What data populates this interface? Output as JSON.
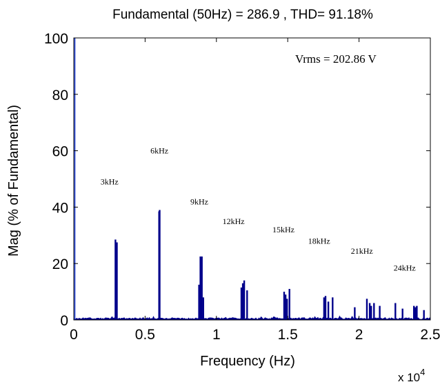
{
  "chart_data": {
    "type": "bar",
    "title": "Fundamental (50Hz) = 286.9 , THD= 91.18%",
    "xlabel": "Frequency (Hz)",
    "ylabel": "Mag (% of Fundamental)",
    "x_multiplier_label": "x 10",
    "x_multiplier_exponent": "4",
    "xlim": [
      0,
      2.5
    ],
    "ylim": [
      0,
      100
    ],
    "x_ticks": [
      0,
      0.5,
      1,
      1.5,
      2,
      2.5
    ],
    "x_tick_labels": [
      "0",
      "0.5",
      "1",
      "1.5",
      "2",
      "2.5"
    ],
    "y_ticks": [
      0,
      20,
      40,
      60,
      80,
      100
    ],
    "y_tick_labels": [
      "0",
      "20",
      "40",
      "60",
      "80",
      "100"
    ],
    "grid": false,
    "bar_color": "#00008B",
    "fundamental_color": "#1F3FD6",
    "inset_text": "Vrms = 202.86 V",
    "annotations": [
      {
        "text": "3kHz",
        "x": 0.25,
        "y": 48
      },
      {
        "text": "6kHz",
        "x": 0.6,
        "y": 59
      },
      {
        "text": "9kHz",
        "x": 0.88,
        "y": 41
      },
      {
        "text": "12kHz",
        "x": 1.12,
        "y": 34
      },
      {
        "text": "15kHz",
        "x": 1.47,
        "y": 31
      },
      {
        "text": "18kHz",
        "x": 1.72,
        "y": 27
      },
      {
        "text": "21kHz",
        "x": 2.02,
        "y": 23.5
      },
      {
        "text": "24kHz",
        "x": 2.32,
        "y": 17.5
      }
    ],
    "series": [
      {
        "x": [
          0.0,
          0.292,
          0.302,
          0.598,
          0.602,
          0.878,
          0.888,
          0.898,
          0.908,
          1.175,
          1.185,
          1.195,
          1.215,
          1.475,
          1.485,
          1.495,
          1.512,
          1.755,
          1.765,
          1.785,
          1.815,
          1.97,
          2.055,
          2.075,
          2.085,
          2.105,
          2.145,
          2.255,
          2.305,
          2.385,
          2.395,
          2.405,
          2.455
        ],
        "values": [
          100,
          28.5,
          27.5,
          38.5,
          39,
          12.5,
          22.5,
          22.5,
          8,
          11.5,
          13,
          14,
          10.5,
          10,
          9,
          7.5,
          11,
          8,
          8.5,
          6.5,
          8,
          4.5,
          7.5,
          6,
          5,
          6,
          5,
          6,
          4,
          5,
          4.5,
          5,
          3.5
        ]
      }
    ]
  }
}
